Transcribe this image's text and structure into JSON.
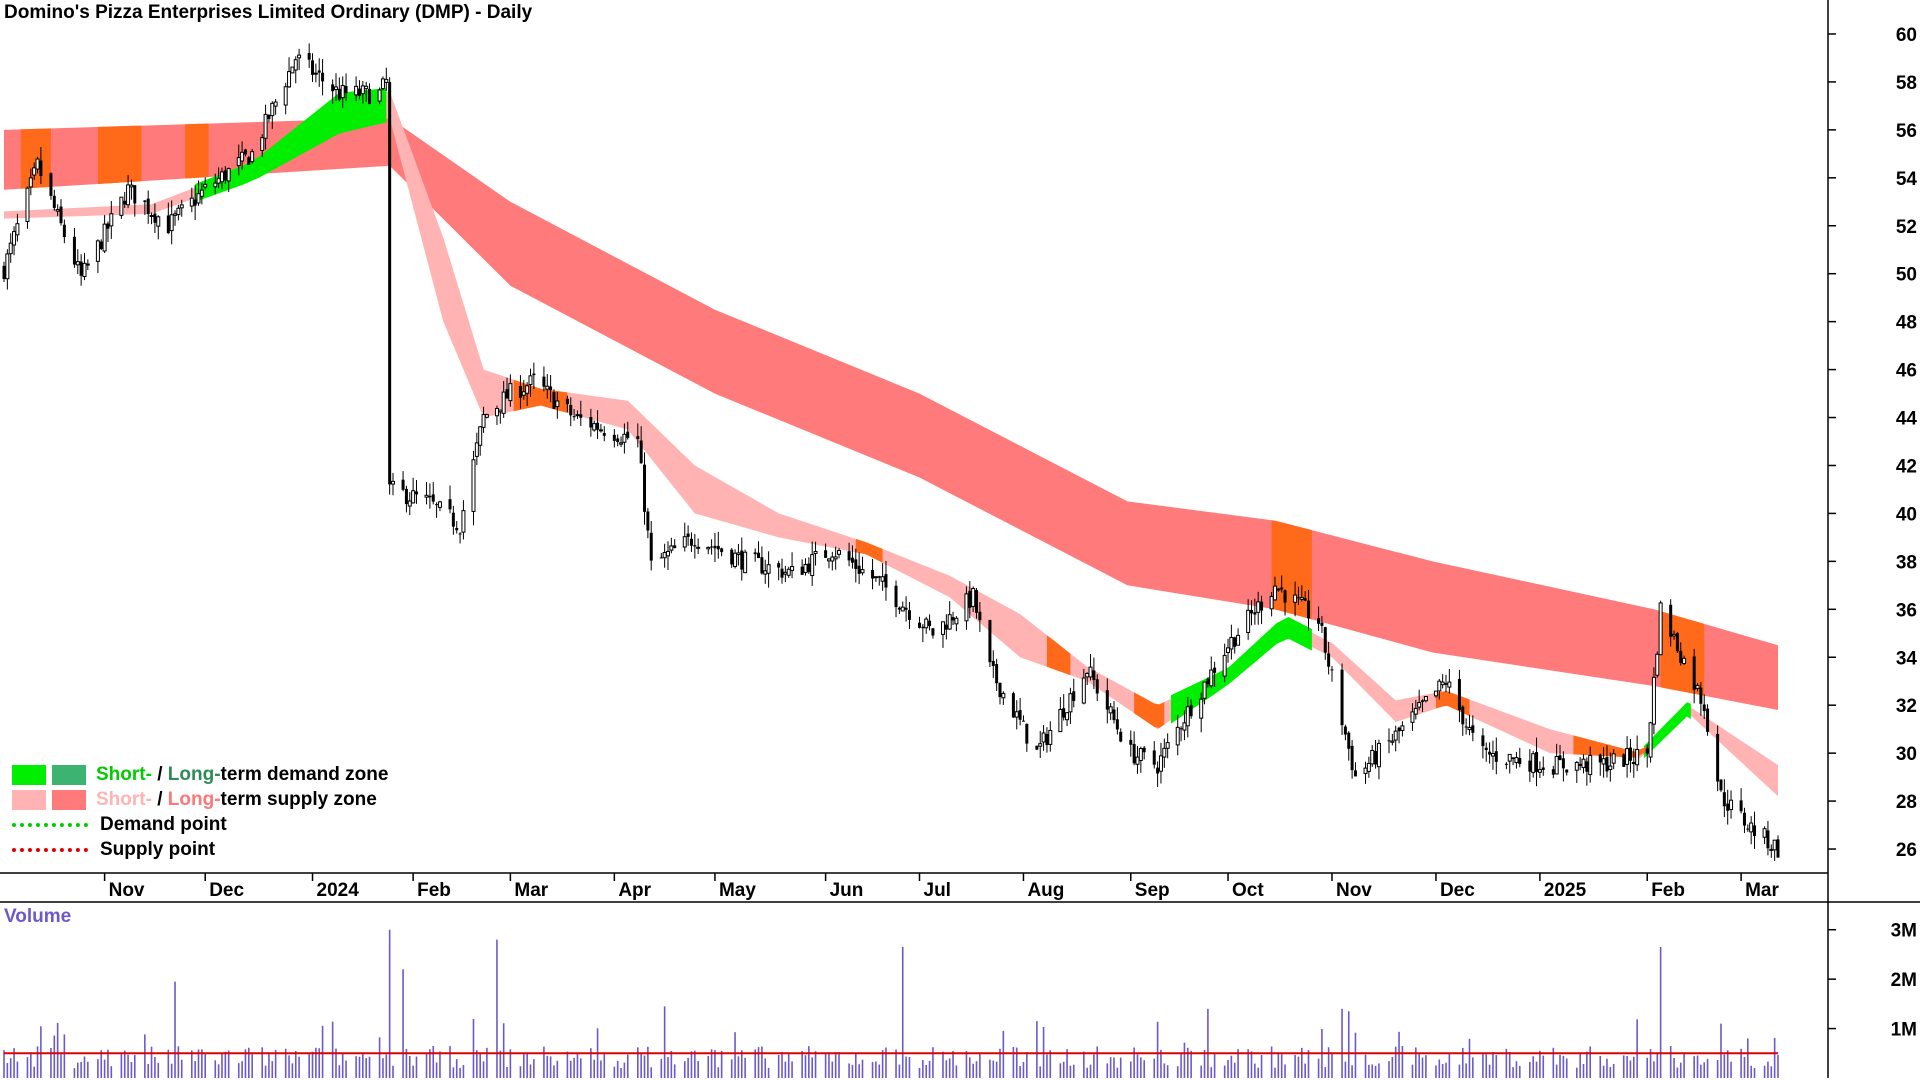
{
  "chart_data": {
    "type": "candlestick",
    "title": "Domino's Pizza Enterprises Limited Ordinary (DMP) - Daily",
    "y_axis": {
      "ticks": [
        26,
        28,
        30,
        32,
        34,
        36,
        38,
        40,
        42,
        44,
        46,
        48,
        50,
        52,
        54,
        56,
        58,
        60
      ],
      "ylim": [
        25,
        61
      ]
    },
    "x_axis": {
      "ticks": [
        "Nov",
        "Dec",
        "2024",
        "Feb",
        "Mar",
        "Apr",
        "May",
        "Jun",
        "Jul",
        "Aug",
        "Sep",
        "Oct",
        "Nov",
        "Dec",
        "2025",
        "Feb",
        "Mar"
      ],
      "start": "2023-10-02",
      "end": "2025-03-14"
    },
    "price_anchors": [
      [
        "2023-10-02",
        50.2
      ],
      [
        "2023-10-12",
        54.5
      ],
      [
        "2023-10-25",
        49.8
      ],
      [
        "2023-11-08",
        53.5
      ],
      [
        "2023-11-20",
        52.0
      ],
      [
        "2023-12-01",
        53.5
      ],
      [
        "2023-12-15",
        55.0
      ],
      [
        "2023-12-28",
        59.0
      ],
      [
        "2024-01-10",
        57.5
      ],
      [
        "2024-01-22",
        57.5
      ],
      [
        "2024-01-24",
        58.0
      ],
      [
        "2024-01-25",
        41.0
      ],
      [
        "2024-02-05",
        40.5
      ],
      [
        "2024-02-15",
        39.5
      ],
      [
        "2024-02-22",
        44.0
      ],
      [
        "2024-03-01",
        45.0
      ],
      [
        "2024-03-08",
        45.5
      ],
      [
        "2024-03-20",
        44.0
      ],
      [
        "2024-04-08",
        43.0
      ],
      [
        "2024-04-12",
        37.8
      ],
      [
        "2024-04-25",
        39.0
      ],
      [
        "2024-05-10",
        38.0
      ],
      [
        "2024-05-24",
        37.5
      ],
      [
        "2024-06-05",
        38.5
      ],
      [
        "2024-06-20",
        37.0
      ],
      [
        "2024-07-05",
        35.0
      ],
      [
        "2024-07-17",
        36.5
      ],
      [
        "2024-07-22",
        33.5
      ],
      [
        "2024-08-05",
        30.0
      ],
      [
        "2024-08-20",
        33.5
      ],
      [
        "2024-09-02",
        30.0
      ],
      [
        "2024-09-10",
        29.5
      ],
      [
        "2024-09-18",
        31.5
      ],
      [
        "2024-10-01",
        34.5
      ],
      [
        "2024-10-15",
        37.0
      ],
      [
        "2024-10-28",
        35.5
      ],
      [
        "2024-11-08",
        29.0
      ],
      [
        "2024-11-22",
        31.0
      ],
      [
        "2024-12-05",
        33.0
      ],
      [
        "2024-12-15",
        30.0
      ],
      [
        "2025-01-05",
        29.5
      ],
      [
        "2025-01-20",
        29.5
      ],
      [
        "2025-02-03",
        30.0
      ],
      [
        "2025-02-07",
        36.0
      ],
      [
        "2025-02-20",
        32.0
      ],
      [
        "2025-02-25",
        28.2
      ],
      [
        "2025-03-05",
        27.0
      ],
      [
        "2025-03-14",
        26.0
      ]
    ],
    "zones": {
      "long_term": [
        [
          "2023-10-02",
          53.5,
          56.0
        ],
        [
          "2024-01-25",
          54.5,
          56.5
        ],
        [
          "2024-03-01",
          49.5,
          53.0
        ],
        [
          "2024-05-01",
          45.0,
          48.5
        ],
        [
          "2024-07-01",
          41.5,
          45.0
        ],
        [
          "2024-09-01",
          37.0,
          40.5
        ],
        [
          "2024-10-15",
          36.0,
          39.7
        ],
        [
          "2024-12-01",
          34.2,
          38.0
        ],
        [
          "2025-02-05",
          32.8,
          36.0
        ],
        [
          "2025-03-14",
          31.8,
          34.5
        ]
      ],
      "short_term": [
        [
          "2023-10-02",
          52.3,
          52.6
        ],
        [
          "2023-11-15",
          52.5,
          52.9
        ],
        [
          "2023-12-15",
          54.0,
          54.5
        ],
        [
          "2024-01-10",
          56.0,
          57.4
        ],
        [
          "2024-01-25",
          56.5,
          57.6
        ],
        [
          "2024-02-10",
          48.0,
          51.5
        ],
        [
          "2024-02-22",
          44.0,
          46.0
        ],
        [
          "2024-03-10",
          44.5,
          45.2
        ],
        [
          "2024-04-05",
          43.5,
          44.7
        ],
        [
          "2024-04-25",
          40.0,
          42.0
        ],
        [
          "2024-05-20",
          39.0,
          40.0
        ],
        [
          "2024-06-15",
          38.3,
          38.8
        ],
        [
          "2024-07-10",
          36.5,
          37.4
        ],
        [
          "2024-07-31",
          34.0,
          35.8
        ],
        [
          "2024-08-20",
          33.0,
          33.6
        ],
        [
          "2024-09-10",
          31.0,
          32.0
        ],
        [
          "2024-10-01",
          33.0,
          33.4
        ],
        [
          "2024-10-18",
          35.0,
          35.6
        ],
        [
          "2024-11-01",
          34.0,
          34.6
        ],
        [
          "2024-11-20",
          31.3,
          32.2
        ],
        [
          "2024-12-05",
          32.0,
          32.6
        ],
        [
          "2025-01-05",
          30.0,
          31.0
        ],
        [
          "2025-02-01",
          29.8,
          30.0
        ],
        [
          "2025-02-15",
          31.7,
          32.0
        ],
        [
          "2025-03-14",
          28.2,
          29.5
        ]
      ],
      "orange_spans": [
        [
          "2023-10-07",
          "2023-10-16"
        ],
        [
          "2023-10-30",
          "2023-11-12"
        ],
        [
          "2023-11-25",
          "2023-12-02"
        ],
        [
          "2024-03-02",
          "2024-03-18"
        ],
        [
          "2024-06-12",
          "2024-06-20"
        ],
        [
          "2024-08-08",
          "2024-08-15"
        ],
        [
          "2024-09-03",
          "2024-09-12"
        ],
        [
          "2024-10-14",
          "2024-10-26"
        ],
        [
          "2024-12-02",
          "2024-12-12"
        ],
        [
          "2025-01-12",
          "2025-02-03"
        ],
        [
          "2025-02-07",
          "2025-02-20"
        ]
      ]
    },
    "volume": {
      "label": "Volume",
      "ticks": [
        "1M",
        "2M",
        "3M"
      ],
      "average_m": 0.5,
      "spikes_m": [
        [
          "2023-11-22",
          1.95
        ],
        [
          "2024-01-25",
          3.0
        ],
        [
          "2024-01-29",
          2.2
        ],
        [
          "2024-02-26",
          2.8
        ],
        [
          "2024-04-16",
          1.45
        ],
        [
          "2024-06-26",
          2.65
        ],
        [
          "2024-08-05",
          1.15
        ],
        [
          "2024-09-25",
          1.4
        ],
        [
          "2024-11-04",
          1.4
        ],
        [
          "2024-11-06",
          1.35
        ],
        [
          "2025-02-07",
          2.65
        ],
        [
          "2025-02-25",
          1.1
        ]
      ]
    },
    "legend": {
      "demand_zone": {
        "short": "Short-",
        "sep": " / ",
        "long": "Long-",
        "suffix": "term demand zone"
      },
      "supply_zone": {
        "short": "Short-",
        "sep": " / ",
        "long": "Long-",
        "suffix": "term supply zone"
      },
      "demand_point": "Demand point",
      "supply_point": "Supply point"
    },
    "colors": {
      "short_demand": "#00ee00",
      "long_demand": "#3cb371",
      "short_supply": "#ffb3b3",
      "long_supply": "#ff7a7a",
      "transition": "#ff6a1a",
      "candle": "#000000",
      "volume_bar": "#6a5acd",
      "volume_avg": "#e00000",
      "demand_point": "#00cc00",
      "supply_point": "#e00000"
    }
  }
}
